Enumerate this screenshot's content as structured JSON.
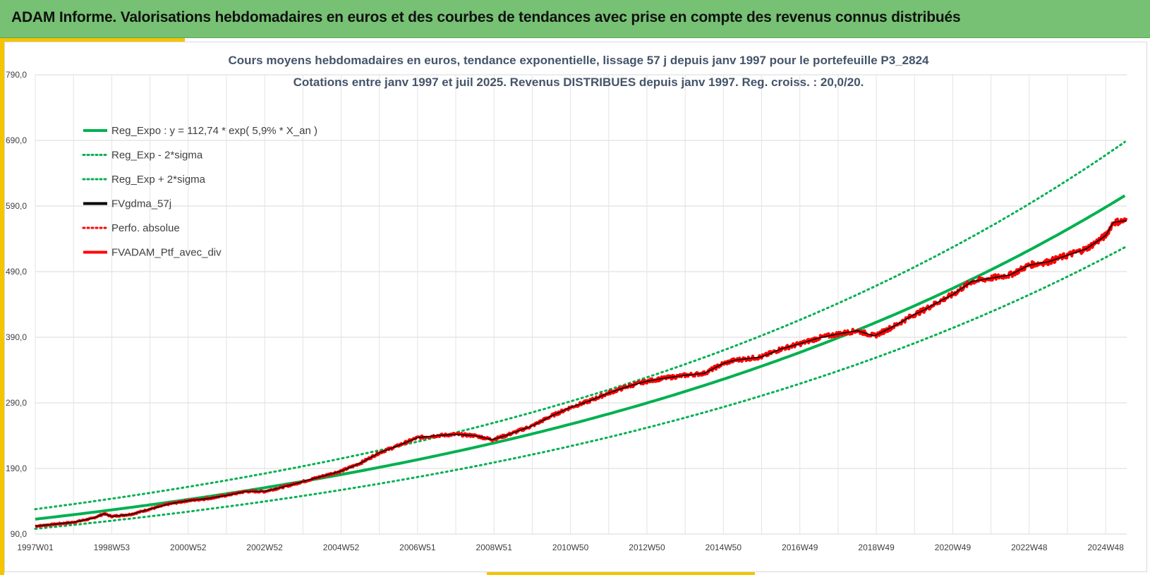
{
  "banner": {
    "title": "ADAM Informe. Valorisations hebdomadaires en euros et des courbes de tendances avec prise en compte des revenus connus distribués"
  },
  "colors": {
    "banner_bg": "#76c173",
    "accent": "#f5c400",
    "reg_expo": "#00b050",
    "fvgdma": "#000000",
    "perfo": "#ff0000",
    "fvadam": "#ff0000",
    "title_text": "#44546a"
  },
  "chart_data": {
    "type": "line",
    "title": [
      "Cours moyens hebdomadaires  en euros, tendance exponentielle, lissage 57 j depuis janv 1997 pour le portefeuille P3_2824",
      "Cotations  entre janv 1997 et juil 2025. Revenus DISTRIBUES depuis janv 1997. Reg. croiss. : 20,0/20."
    ],
    "xlabel": "",
    "ylabel": "",
    "xlim": [
      1997.0,
      2025.55
    ],
    "ylim": [
      90,
      790
    ],
    "y_ticks": [
      "90,0",
      "190,0",
      "290,0",
      "390,0",
      "490,0",
      "590,0",
      "690,0",
      "790,0"
    ],
    "y_tick_values": [
      90,
      190,
      290,
      390,
      490,
      590,
      690,
      790
    ],
    "x_ticks": [
      "1997W01",
      "1998W53",
      "2000W52",
      "2002W52",
      "2004W52",
      "2006W51",
      "2008W51",
      "2010W50",
      "2012W50",
      "2014W50",
      "2016W49",
      "2018W49",
      "2020W49",
      "2022W48",
      "2024W48"
    ],
    "x_tick_values": [
      1997.0,
      1999.0,
      2001.0,
      2003.0,
      2005.0,
      2007.0,
      2009.0,
      2011.0,
      2013.0,
      2015.0,
      2017.0,
      2019.0,
      2021.0,
      2023.0,
      2025.0
    ],
    "grid": true,
    "legend_position": "top-left",
    "regression": {
      "a": 112.74,
      "rate": 0.059,
      "x_start": 1997.0,
      "x_end": 2025.55
    },
    "sigma_bands": {
      "lower_factor": 0.87,
      "upper_factor": 1.135
    },
    "series": [
      {
        "name": "Reg_Expo : y = 112,74 * exp( 5,9% *  X_an )",
        "style": "solid-thick",
        "color": "#00b050",
        "kind": "regression"
      },
      {
        "name": "Reg_Exp - 2*sigma",
        "style": "dotted",
        "color": "#00b050",
        "kind": "lower_band"
      },
      {
        "name": "Reg_Exp + 2*sigma",
        "style": "dotted",
        "color": "#00b050",
        "kind": "upper_band"
      },
      {
        "name": "FVgdma_57j",
        "style": "solid",
        "color": "#000000",
        "kind": "smoothed"
      },
      {
        "name": "Perfo. absolue",
        "style": "dotted",
        "color": "#ff0000",
        "kind": "none"
      },
      {
        "name": "FVADAM_Ptf_avec_div",
        "style": "solid-thick",
        "color": "#ff0000",
        "kind": "price"
      }
    ],
    "price_points": {
      "x": [
        1997.0,
        1997.5,
        1998.0,
        1998.5,
        1998.8,
        1999.0,
        1999.5,
        2000.0,
        2000.5,
        2001.0,
        2001.5,
        2002.0,
        2002.5,
        2003.0,
        2003.5,
        2004.0,
        2004.5,
        2005.0,
        2005.5,
        2006.0,
        2006.5,
        2007.0,
        2007.5,
        2008.0,
        2008.5,
        2008.95,
        2009.3,
        2010.0,
        2010.5,
        2011.0,
        2011.5,
        2012.0,
        2012.5,
        2013.0,
        2013.5,
        2014.0,
        2014.5,
        2015.0,
        2015.3,
        2016.0,
        2016.5,
        2017.0,
        2017.5,
        2018.0,
        2018.5,
        2018.95,
        2019.5,
        2020.0,
        2020.2,
        2020.5,
        2021.0,
        2021.5,
        2022.0,
        2022.5,
        2023.0,
        2023.5,
        2024.0,
        2024.5,
        2025.0,
        2025.2,
        2025.55
      ],
      "y": [
        102,
        105,
        108,
        114,
        121,
        117,
        120,
        128,
        136,
        141,
        144,
        149,
        155,
        155,
        162,
        170,
        178,
        186,
        198,
        214,
        225,
        237,
        240,
        242,
        240,
        234,
        240,
        255,
        270,
        283,
        293,
        305,
        315,
        323,
        328,
        332,
        335,
        350,
        355,
        360,
        372,
        380,
        389,
        395,
        400,
        392,
        408,
        425,
        430,
        440,
        455,
        475,
        480,
        485,
        500,
        505,
        515,
        525,
        545,
        565,
        568
      ]
    }
  }
}
